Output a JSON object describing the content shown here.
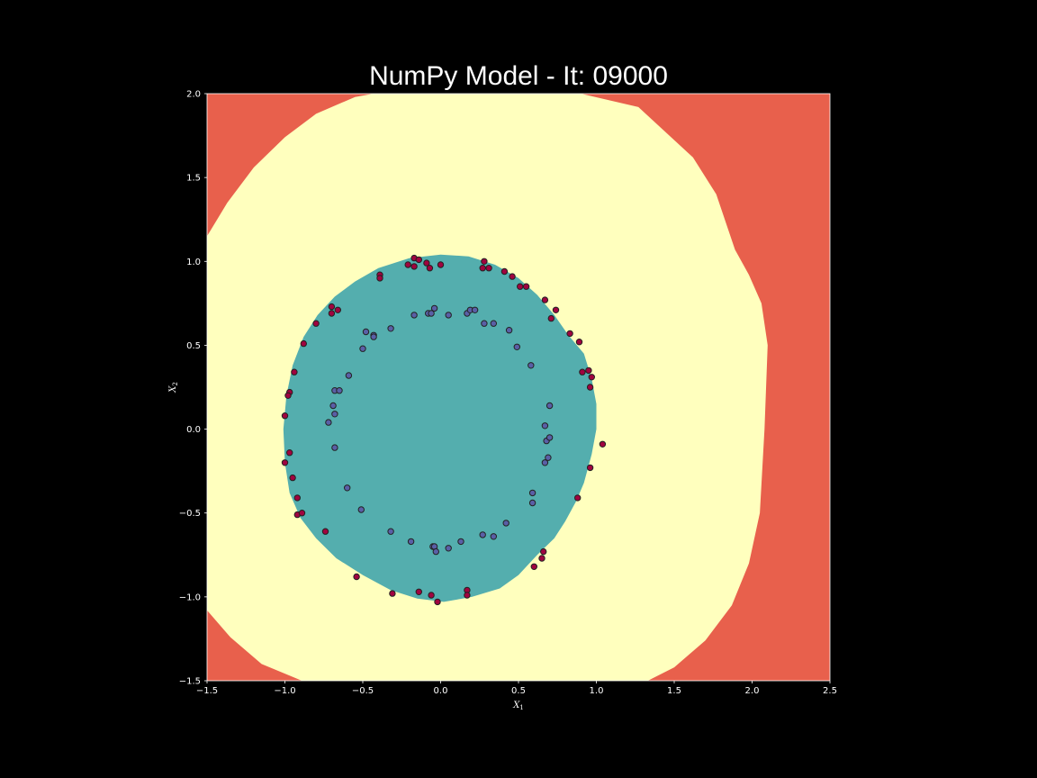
{
  "title": "NumPy Model - It: 09000",
  "colors": {
    "background": "#000000",
    "outer_region": "#e8604c",
    "middle_region": "#ffffbe",
    "inner_region": "#54aeae",
    "class_outer_point": "#a0043f",
    "class_inner_point": "#5a5fa6",
    "point_edge": "#222222"
  },
  "chart_data": {
    "type": "scatter",
    "subtype": "decision-boundary-contour",
    "title": "NumPy Model - It: 09000",
    "xlabel": "X",
    "xlabel_sub": "1",
    "ylabel": "X",
    "ylabel_sub": "2",
    "xlim": [
      -1.5,
      2.5
    ],
    "ylim": [
      -1.5,
      2.0
    ],
    "xticks": [
      -1.5,
      -1.0,
      -0.5,
      0.0,
      0.5,
      1.0,
      1.5,
      2.0,
      2.5
    ],
    "xtick_labels": [
      "−1.5",
      "−1.0",
      "−0.5",
      "0.0",
      "0.5",
      "1.0",
      "1.5",
      "2.0",
      "2.5"
    ],
    "yticks": [
      -1.5,
      -1.0,
      -0.5,
      0.0,
      0.5,
      1.0,
      1.5,
      2.0
    ],
    "ytick_labels": [
      "−1.5",
      "−1.0",
      "−0.5",
      "0.0",
      "0.5",
      "1.0",
      "1.5",
      "2.0"
    ],
    "grid": false,
    "regions": [
      {
        "name": "outer",
        "color": "#e8604c"
      },
      {
        "name": "middle",
        "color": "#ffffbe",
        "boundary": [
          [
            -1.5,
            1.15
          ],
          [
            -1.37,
            1.35
          ],
          [
            -1.2,
            1.56
          ],
          [
            -1.0,
            1.74
          ],
          [
            -0.8,
            1.88
          ],
          [
            -0.55,
            1.98
          ],
          [
            -0.43,
            2.0
          ],
          [
            0.9,
            2.0
          ],
          [
            1.27,
            1.92
          ],
          [
            1.62,
            1.62
          ],
          [
            1.77,
            1.4
          ],
          [
            1.89,
            1.07
          ],
          [
            1.98,
            0.92
          ],
          [
            2.06,
            0.75
          ],
          [
            2.1,
            0.5
          ],
          [
            2.08,
            0.0
          ],
          [
            2.05,
            -0.5
          ],
          [
            1.98,
            -0.8
          ],
          [
            1.87,
            -1.05
          ],
          [
            1.7,
            -1.26
          ],
          [
            1.5,
            -1.42
          ],
          [
            1.33,
            -1.5
          ],
          [
            -0.89,
            -1.5
          ],
          [
            -1.15,
            -1.4
          ],
          [
            -1.35,
            -1.24
          ],
          [
            -1.5,
            -1.08
          ]
        ]
      },
      {
        "name": "inner",
        "color": "#54aeae",
        "boundary": [
          [
            0.0,
            1.04
          ],
          [
            0.18,
            1.03
          ],
          [
            0.35,
            0.98
          ],
          [
            0.5,
            0.9
          ],
          [
            0.62,
            0.8
          ],
          [
            0.73,
            0.68
          ],
          [
            0.82,
            0.56
          ],
          [
            0.92,
            0.45
          ],
          [
            0.97,
            0.3
          ],
          [
            1.0,
            0.15
          ],
          [
            1.0,
            0.0
          ],
          [
            0.97,
            -0.15
          ],
          [
            0.92,
            -0.32
          ],
          [
            0.87,
            -0.43
          ],
          [
            0.8,
            -0.55
          ],
          [
            0.73,
            -0.65
          ],
          [
            0.62,
            -0.75
          ],
          [
            0.5,
            -0.87
          ],
          [
            0.38,
            -0.95
          ],
          [
            0.2,
            -1.0
          ],
          [
            0.02,
            -1.03
          ],
          [
            -0.15,
            -1.01
          ],
          [
            -0.32,
            -0.96
          ],
          [
            -0.5,
            -0.87
          ],
          [
            -0.67,
            -0.77
          ],
          [
            -0.8,
            -0.65
          ],
          [
            -0.9,
            -0.53
          ],
          [
            -0.97,
            -0.38
          ],
          [
            -1.0,
            -0.2
          ],
          [
            -1.01,
            0.0
          ],
          [
            -0.99,
            0.2
          ],
          [
            -0.95,
            0.38
          ],
          [
            -0.88,
            0.55
          ],
          [
            -0.79,
            0.68
          ],
          [
            -0.68,
            0.79
          ],
          [
            -0.55,
            0.88
          ],
          [
            -0.4,
            0.96
          ],
          [
            -0.2,
            1.02
          ]
        ]
      }
    ],
    "series": [
      {
        "class": "outer",
        "color": "#a0043f",
        "points": [
          [
            -0.17,
            1.02
          ],
          [
            -0.14,
            1.01
          ],
          [
            -0.21,
            0.98
          ],
          [
            -0.17,
            0.97
          ],
          [
            -0.09,
            0.99
          ],
          [
            -0.07,
            0.96
          ],
          [
            0.0,
            0.98
          ],
          [
            0.28,
            1.0
          ],
          [
            0.27,
            0.96
          ],
          [
            0.31,
            0.96
          ],
          [
            0.41,
            0.94
          ],
          [
            0.46,
            0.91
          ],
          [
            0.51,
            0.85
          ],
          [
            0.55,
            0.85
          ],
          [
            -0.39,
            0.92
          ],
          [
            -0.39,
            0.9
          ],
          [
            -0.7,
            0.73
          ],
          [
            -0.66,
            0.71
          ],
          [
            -0.7,
            0.69
          ],
          [
            -0.8,
            0.63
          ],
          [
            -0.88,
            0.51
          ],
          [
            -0.94,
            0.34
          ],
          [
            -0.97,
            0.22
          ],
          [
            -0.98,
            0.2
          ],
          [
            -1.0,
            0.08
          ],
          [
            -0.97,
            -0.14
          ],
          [
            -1.0,
            -0.2
          ],
          [
            -0.95,
            -0.29
          ],
          [
            -0.92,
            -0.41
          ],
          [
            -0.92,
            -0.51
          ],
          [
            -0.89,
            -0.5
          ],
          [
            -0.74,
            -0.61
          ],
          [
            -0.54,
            -0.88
          ],
          [
            -0.31,
            -0.98
          ],
          [
            -0.14,
            -0.97
          ],
          [
            -0.06,
            -0.99
          ],
          [
            -0.02,
            -1.03
          ],
          [
            0.17,
            -0.96
          ],
          [
            0.17,
            -0.99
          ],
          [
            0.6,
            -0.82
          ],
          [
            0.65,
            -0.77
          ],
          [
            0.66,
            -0.73
          ],
          [
            0.88,
            -0.41
          ],
          [
            0.96,
            -0.23
          ],
          [
            1.04,
            -0.09
          ],
          [
            0.96,
            0.25
          ],
          [
            0.97,
            0.31
          ],
          [
            0.91,
            0.34
          ],
          [
            0.95,
            0.35
          ],
          [
            0.89,
            0.52
          ],
          [
            0.83,
            0.57
          ],
          [
            0.74,
            0.71
          ],
          [
            0.71,
            0.66
          ],
          [
            0.67,
            0.77
          ]
        ]
      },
      {
        "class": "inner",
        "color": "#5a5fa6",
        "points": [
          [
            -0.04,
            0.72
          ],
          [
            -0.08,
            0.69
          ],
          [
            -0.06,
            0.69
          ],
          [
            0.05,
            0.68
          ],
          [
            0.17,
            0.69
          ],
          [
            0.19,
            0.71
          ],
          [
            0.22,
            0.71
          ],
          [
            -0.17,
            0.68
          ],
          [
            0.28,
            0.63
          ],
          [
            0.34,
            0.63
          ],
          [
            0.44,
            0.59
          ],
          [
            0.49,
            0.49
          ],
          [
            0.58,
            0.38
          ],
          [
            -0.32,
            0.6
          ],
          [
            -0.48,
            0.58
          ],
          [
            -0.43,
            0.56
          ],
          [
            -0.43,
            0.55
          ],
          [
            -0.5,
            0.48
          ],
          [
            -0.59,
            0.32
          ],
          [
            -0.68,
            0.23
          ],
          [
            -0.65,
            0.23
          ],
          [
            -0.69,
            0.14
          ],
          [
            -0.68,
            0.09
          ],
          [
            -0.72,
            0.04
          ],
          [
            -0.68,
            -0.11
          ],
          [
            -0.6,
            -0.35
          ],
          [
            -0.51,
            -0.48
          ],
          [
            -0.32,
            -0.61
          ],
          [
            -0.19,
            -0.67
          ],
          [
            -0.05,
            -0.7
          ],
          [
            -0.04,
            -0.7
          ],
          [
            -0.03,
            -0.73
          ],
          [
            0.05,
            -0.71
          ],
          [
            0.13,
            -0.67
          ],
          [
            0.27,
            -0.63
          ],
          [
            0.34,
            -0.64
          ],
          [
            0.42,
            -0.56
          ],
          [
            0.59,
            -0.38
          ],
          [
            0.59,
            -0.44
          ],
          [
            0.67,
            -0.2
          ],
          [
            0.69,
            -0.17
          ],
          [
            0.68,
            -0.07
          ],
          [
            0.7,
            -0.05
          ],
          [
            0.67,
            0.02
          ],
          [
            0.7,
            0.14
          ]
        ]
      }
    ]
  }
}
